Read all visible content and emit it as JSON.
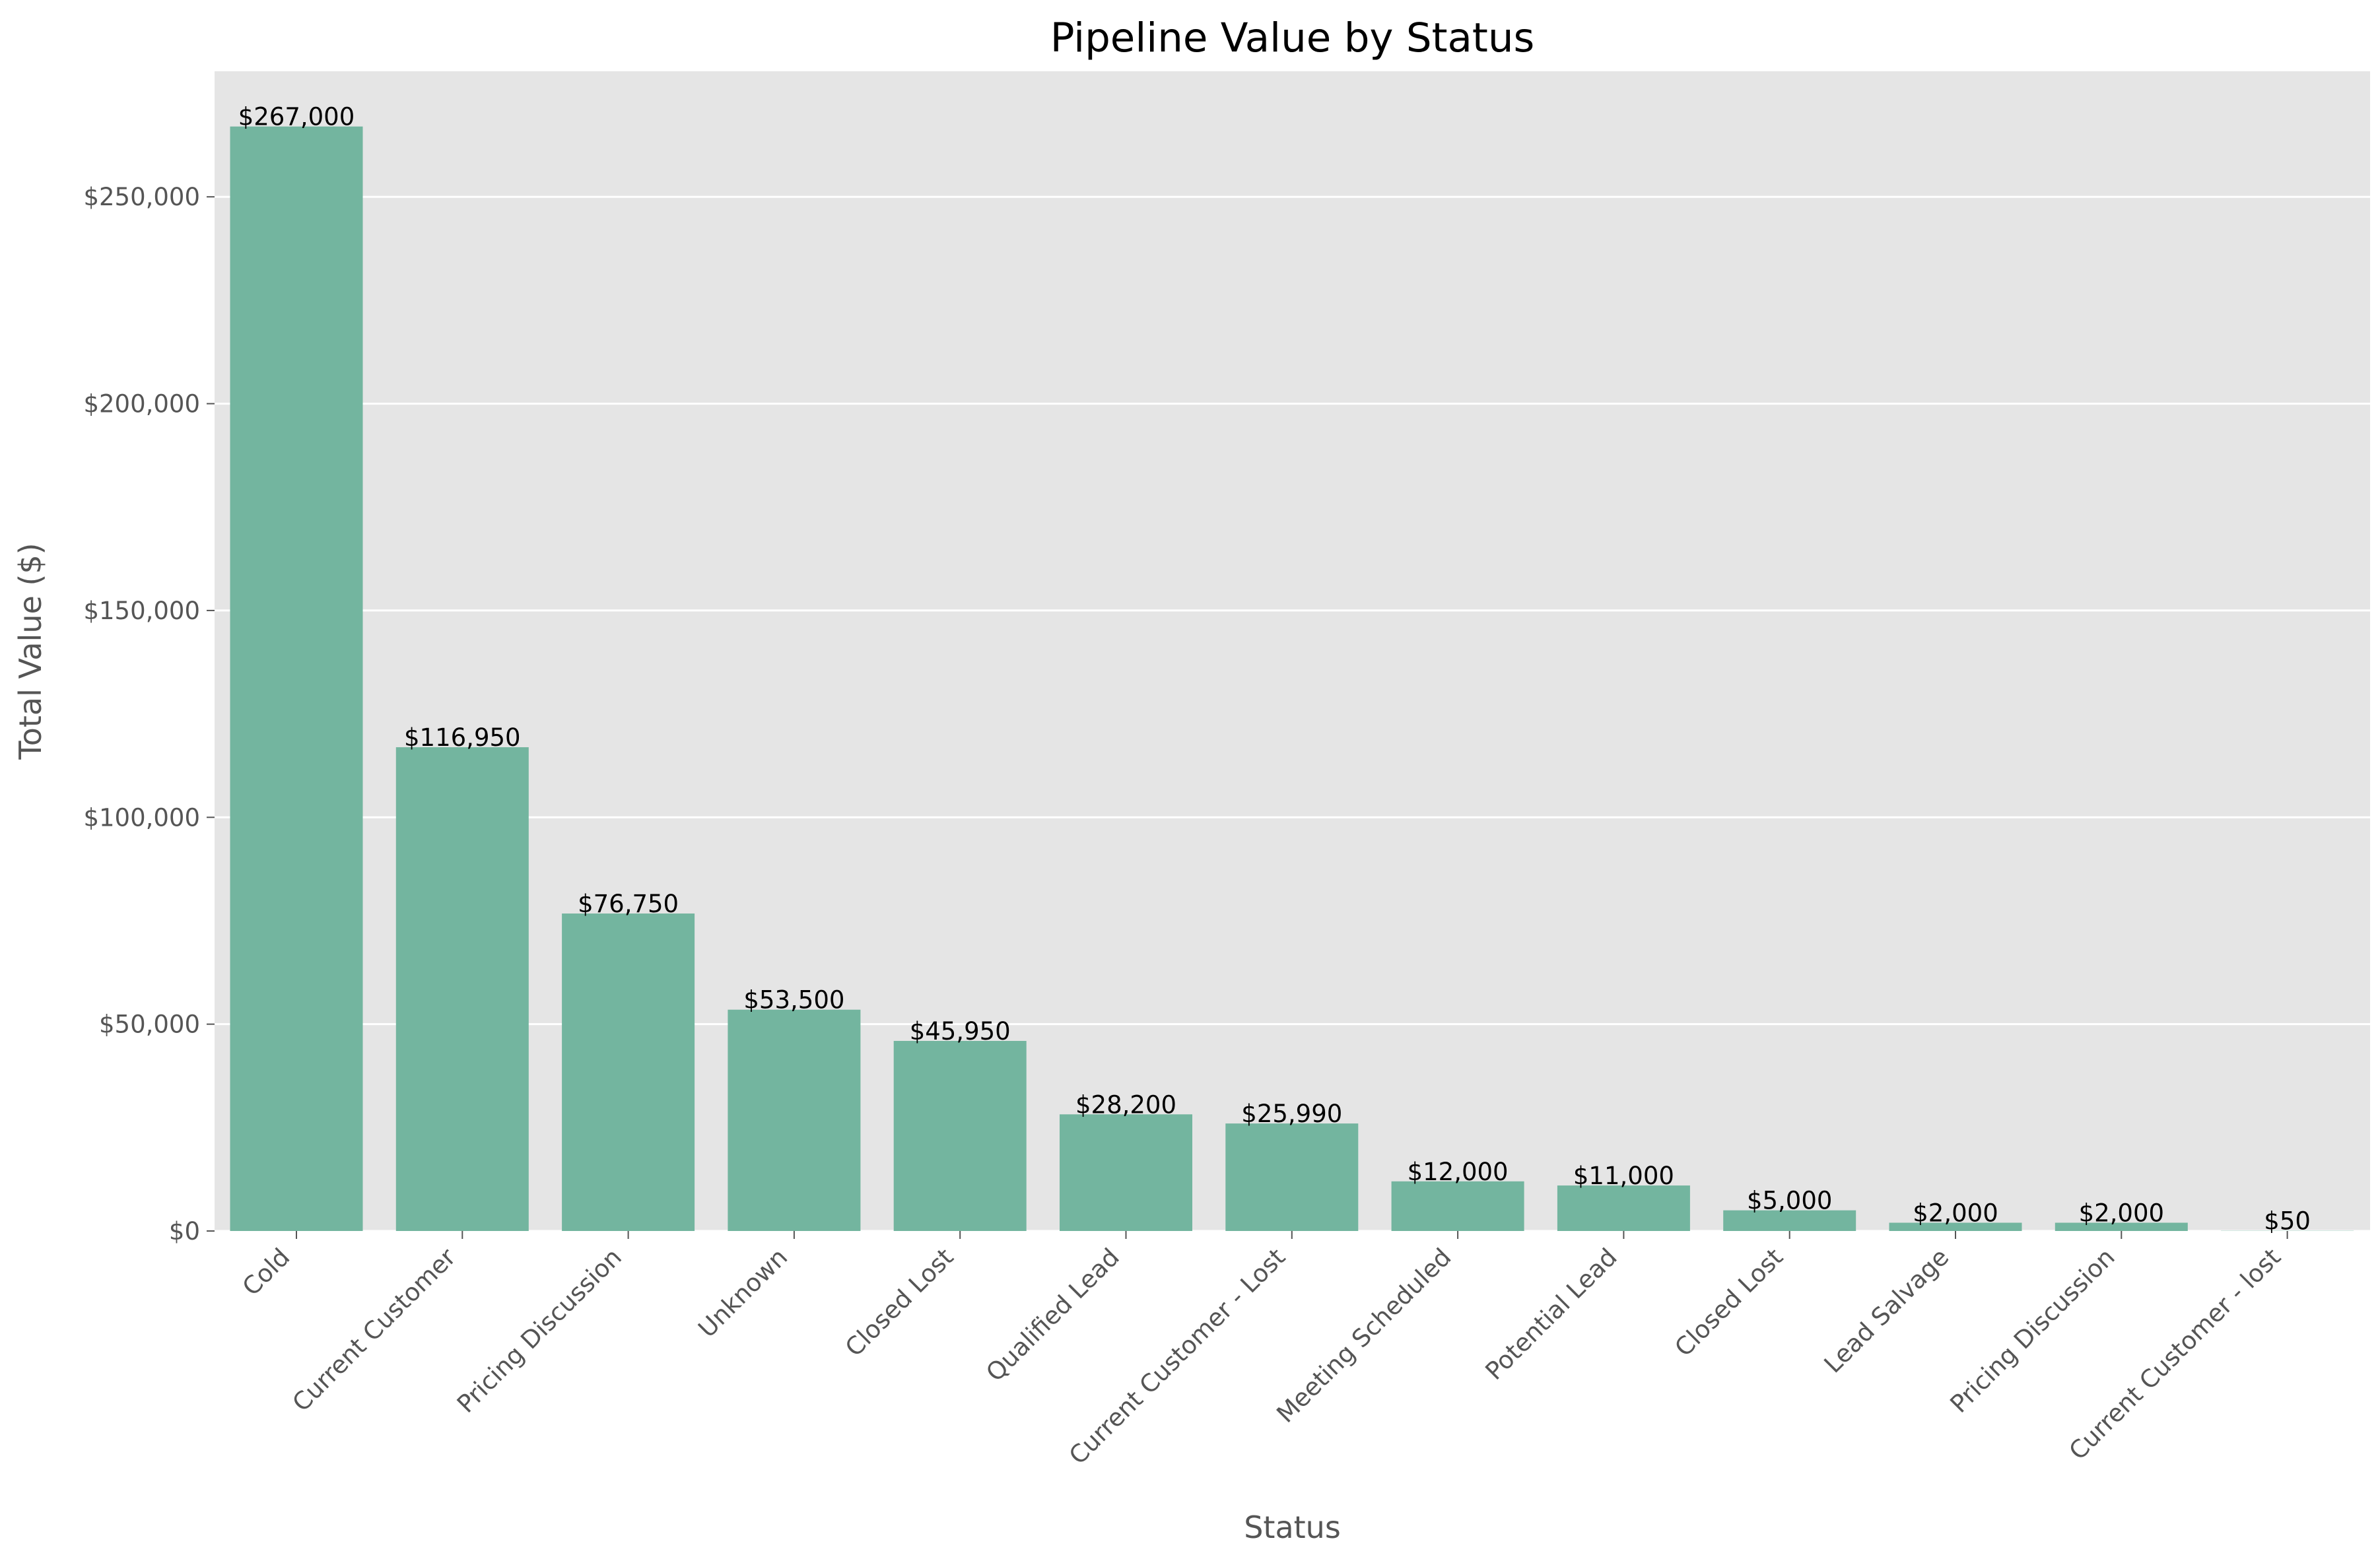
{
  "chart_data": {
    "type": "bar",
    "title": "Pipeline Value by Status",
    "xlabel": "Status",
    "ylabel": "Total Value ($)",
    "categories": [
      "Cold",
      "Current Customer",
      "Pricing Discussion",
      "Unknown",
      "Closed Lost",
      "Qualified Lead",
      "Current Customer - Lost",
      "Meeting Scheduled",
      "Potential Lead",
      "Closed Lost",
      "Lead Salvage",
      "Pricing Discussion",
      "Current Customer - lost"
    ],
    "values": [
      267000,
      116950,
      76750,
      53500,
      45950,
      28200,
      25990,
      12000,
      11000,
      5000,
      2000,
      2000,
      50
    ],
    "data_labels": [
      "$267,000",
      "$116,950",
      "$76,750",
      "$53,500",
      "$45,950",
      "$28,200",
      "$25,990",
      "$12,000",
      "$11,000",
      "$5,000",
      "$2,000",
      "$2,000",
      "$50"
    ],
    "ylim": [
      0,
      280350
    ],
    "yticks": [
      0,
      50000,
      100000,
      150000,
      200000,
      250000
    ],
    "ytick_labels": [
      "$0",
      "$50,000",
      "$100,000",
      "$150,000",
      "$200,000",
      "$250,000"
    ],
    "grid": true,
    "colors": {
      "bar": "#73b59f",
      "plot_background": "#e5e5e5",
      "grid": "#ffffff",
      "figure_background": "#ffffff",
      "tick_text": "#555555",
      "title_text": "#000000"
    }
  }
}
